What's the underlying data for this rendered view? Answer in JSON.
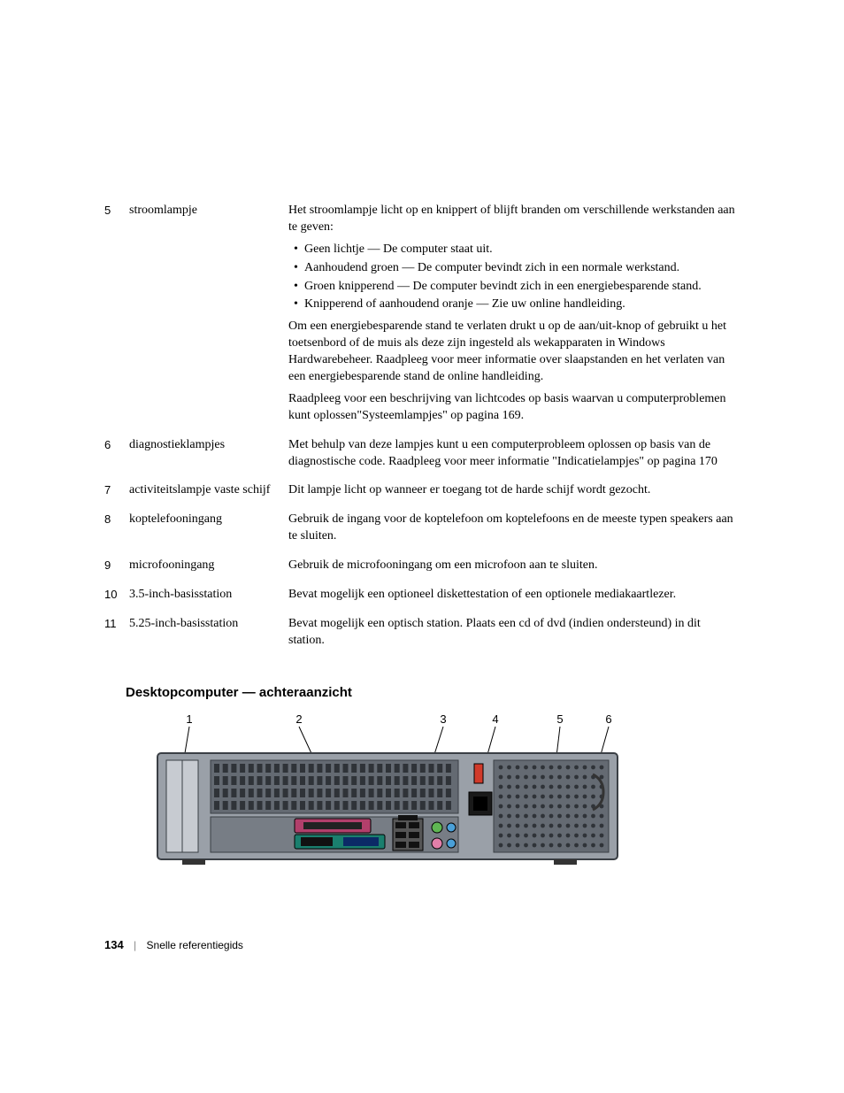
{
  "table": {
    "rows": [
      {
        "num": "5",
        "label": "stroomlampje",
        "blocks": [
          {
            "type": "p",
            "text": "Het stroomlampje licht op en knippert of blijft branden om verschillende werkstanden aan te geven:"
          },
          {
            "type": "ul",
            "items": [
              "Geen lichtje — De computer staat uit.",
              "Aanhoudend groen — De computer bevindt zich in een normale werkstand.",
              "Groen knipperend — De computer bevindt zich in een energiebesparende stand.",
              "Knipperend of aanhoudend oranje — Zie uw online handleiding."
            ]
          },
          {
            "type": "p",
            "text": "Om een energiebesparende stand te verlaten drukt u op de aan/uit-knop of gebruikt u het toetsenbord of de muis als deze zijn ingesteld als wekapparaten in Windows Hardwarebeheer. Raadpleeg voor meer informatie over slaapstanden en het verlaten van een energiebesparende stand de online handleiding."
          },
          {
            "type": "p",
            "text": "Raadpleeg voor een beschrijving van lichtcodes op basis waarvan u computerproblemen kunt oplossen\"Systeemlampjes\" op pagina 169."
          }
        ]
      },
      {
        "num": "6",
        "label": "diagnostieklampjes",
        "blocks": [
          {
            "type": "p",
            "text": "Met behulp van deze lampjes kunt u een computerprobleem oplossen op basis van de diagnostische code. Raadpleeg voor meer informatie \"Indicatielampjes\" op pagina 170"
          }
        ]
      },
      {
        "num": "7",
        "label": "activiteitslampje vaste schijf",
        "blocks": [
          {
            "type": "p",
            "text": "Dit lampje licht op wanneer er toegang tot de harde schijf wordt gezocht."
          }
        ]
      },
      {
        "num": "8",
        "label": "koptelefooningang",
        "blocks": [
          {
            "type": "p",
            "text": "Gebruik de ingang voor de koptelefoon om koptelefoons en de meeste typen speakers aan te sluiten."
          }
        ]
      },
      {
        "num": "9",
        "label": "microfooningang",
        "blocks": [
          {
            "type": "p",
            "text": "Gebruik de microfooningang om een microfoon aan te sluiten."
          }
        ]
      },
      {
        "num": "10",
        "label": "3.5-inch-basisstation",
        "blocks": [
          {
            "type": "p",
            "text": "Bevat mogelijk een optioneel diskettestation of een optionele mediakaartlezer."
          }
        ]
      },
      {
        "num": "11",
        "label": "5.25-inch-basisstation",
        "blocks": [
          {
            "type": "p",
            "text": "Bevat mogelijk een optisch station. Plaats een cd of dvd (indien ondersteund) in dit station."
          }
        ]
      }
    ]
  },
  "section_heading": "Desktopcomputer — achteraanzicht",
  "diagram": {
    "callouts": [
      "1",
      "2",
      "3",
      "4",
      "5",
      "6"
    ],
    "callout_fontsize": 13,
    "chassis": {
      "fill": "#9aa0a8",
      "stroke": "#3a3f45",
      "vent_fill": "#646a72",
      "port_colors": {
        "parallel_bg": "#b23f6b",
        "serial_vga_bg": "#1a7f6e",
        "audio_green": "#5fb653",
        "audio_pink": "#e37fa9",
        "voltage_switch": "#d13a2a",
        "usb_black": "#111111"
      }
    }
  },
  "footer": {
    "page_number": "134",
    "doc_title": "Snelle referentiegids"
  },
  "colors": {
    "text": "#000000",
    "background": "#ffffff",
    "divider": "#888888"
  }
}
